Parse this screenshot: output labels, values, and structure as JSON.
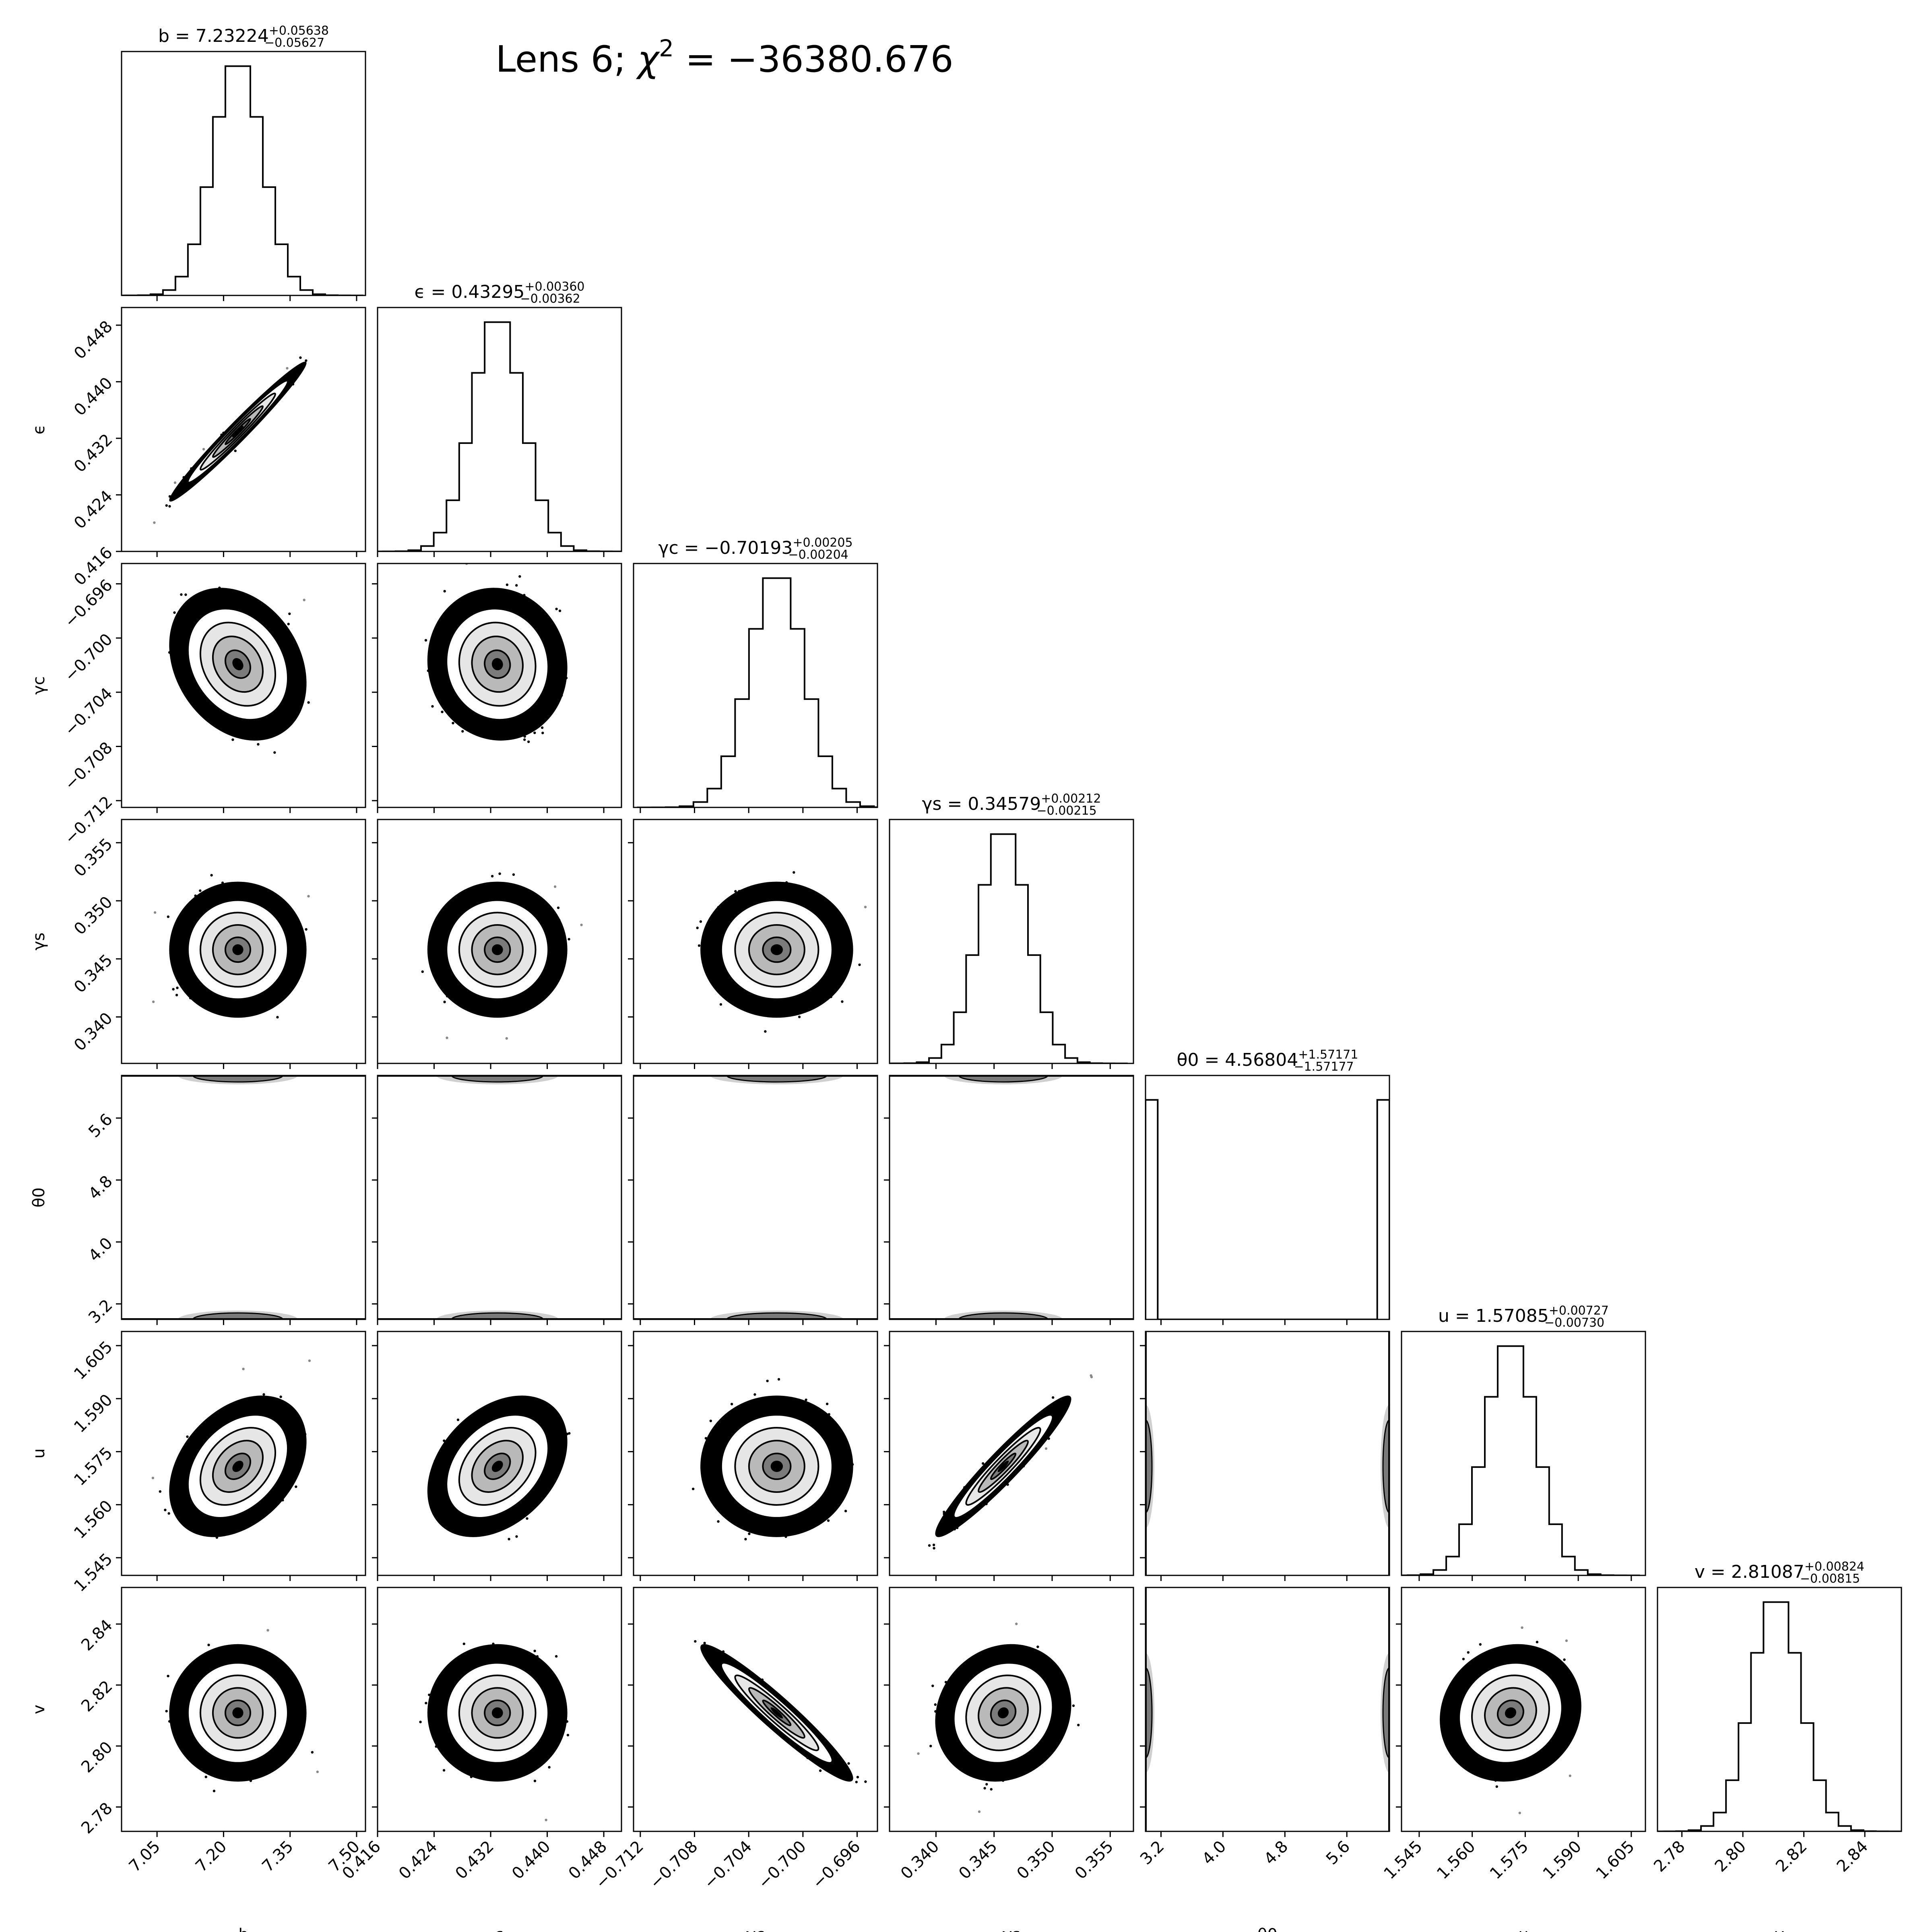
{
  "figure": {
    "title_prefix": "Lens 6; ",
    "title_chi": "χ",
    "title_exp": "2",
    "title_value": " = −36380.676"
  },
  "colors": {
    "ink": "#000000",
    "background": "#ffffff"
  },
  "chart_data": {
    "type": "corner",
    "grid": false,
    "parameters": [
      {
        "key": "b",
        "label": "b",
        "title_label": "b",
        "median": "7.23224",
        "plus": "+0.05638",
        "minus": "−0.05627",
        "range": [
          6.97,
          7.52
        ],
        "ticks": [
          7.05,
          7.2,
          7.35,
          7.5
        ],
        "tick_labels": [
          "7.05",
          "7.20",
          "7.35",
          "7.50"
        ],
        "center": 7.23224,
        "sigma": 0.0563,
        "hist_shape": "gaussian"
      },
      {
        "key": "eps",
        "label": "ϵ",
        "title_label": "ϵ",
        "median": "0.43295",
        "plus": "+0.00360",
        "minus": "−0.00362",
        "range": [
          0.416,
          0.4505
        ],
        "ticks": [
          0.416,
          0.424,
          0.432,
          0.44,
          0.448
        ],
        "tick_labels": [
          "0.416",
          "0.424",
          "0.432",
          "0.440",
          "0.448"
        ],
        "center": 0.43295,
        "sigma": 0.0036,
        "hist_shape": "gaussian"
      },
      {
        "key": "gc",
        "label": "γc",
        "title_label": "γc",
        "median": "−0.70193",
        "plus": "+0.00205",
        "minus": "−0.00204",
        "range": [
          -0.7125,
          -0.6945
        ],
        "ticks": [
          -0.712,
          -0.708,
          -0.704,
          -0.7,
          -0.696
        ],
        "tick_labels": [
          "−0.712",
          "−0.708",
          "−0.704",
          "−0.700",
          "−0.696"
        ],
        "center": -0.70193,
        "sigma": 0.00205,
        "hist_shape": "gaussian"
      },
      {
        "key": "gs",
        "label": "γs",
        "title_label": "γs",
        "median": "0.34579",
        "plus": "+0.00212",
        "minus": "−0.00215",
        "range": [
          0.336,
          0.357
        ],
        "ticks": [
          0.34,
          0.345,
          0.35,
          0.355
        ],
        "tick_labels": [
          "0.340",
          "0.345",
          "0.350",
          "0.355"
        ],
        "center": 0.34579,
        "sigma": 0.00213,
        "hist_shape": "gaussian"
      },
      {
        "key": "th",
        "label": "θ0",
        "title_label": "θ0",
        "median": "4.56804",
        "plus": "+1.57171",
        "minus": "−1.57177",
        "range": [
          3.0,
          6.15
        ],
        "ticks": [
          3.2,
          4.0,
          4.8,
          5.6
        ],
        "tick_labels": [
          "3.2",
          "4.0",
          "4.8",
          "5.6"
        ],
        "center": 4.56804,
        "sigma": 1.5717,
        "hist_shape": "edges",
        "edge_low": 3.0,
        "edge_high": 6.15
      },
      {
        "key": "u",
        "label": "u",
        "title_label": "u",
        "median": "1.57085",
        "plus": "+0.00727",
        "minus": "−0.00730",
        "range": [
          1.54,
          1.609
        ],
        "ticks": [
          1.545,
          1.56,
          1.575,
          1.59,
          1.605
        ],
        "tick_labels": [
          "1.545",
          "1.560",
          "1.575",
          "1.590",
          "1.605"
        ],
        "center": 1.57085,
        "sigma": 0.00728,
        "hist_shape": "gaussian"
      },
      {
        "key": "v",
        "label": "v",
        "title_label": "v",
        "median": "2.81087",
        "plus": "+0.00824",
        "minus": "−0.00815",
        "range": [
          2.772,
          2.852
        ],
        "ticks": [
          2.78,
          2.8,
          2.82,
          2.84
        ],
        "tick_labels": [
          "2.78",
          "2.80",
          "2.82",
          "2.84"
        ],
        "center": 2.81087,
        "sigma": 0.0082,
        "hist_shape": "gaussian"
      }
    ],
    "correlations": [
      [
        "b",
        "eps",
        0.98
      ],
      [
        "b",
        "u",
        0.35
      ],
      [
        "eps",
        "u",
        0.35
      ],
      [
        "gc",
        "v",
        -0.95
      ],
      [
        "gs",
        "u",
        0.95
      ],
      [
        "gs",
        "v",
        0.12
      ],
      [
        "u",
        "v",
        0.1
      ],
      [
        "b",
        "gc",
        -0.25
      ],
      [
        "eps",
        "gc",
        -0.05
      ],
      [
        "b",
        "gs",
        0.0
      ],
      [
        "eps",
        "gs",
        0.0
      ],
      [
        "gc",
        "gs",
        0.0
      ],
      [
        "gc",
        "u",
        0.0
      ],
      [
        "b",
        "v",
        0.0
      ],
      [
        "eps",
        "v",
        0.0
      ]
    ],
    "contour_levels": [
      0.5,
      1.0,
      1.5,
      2.0
    ]
  }
}
